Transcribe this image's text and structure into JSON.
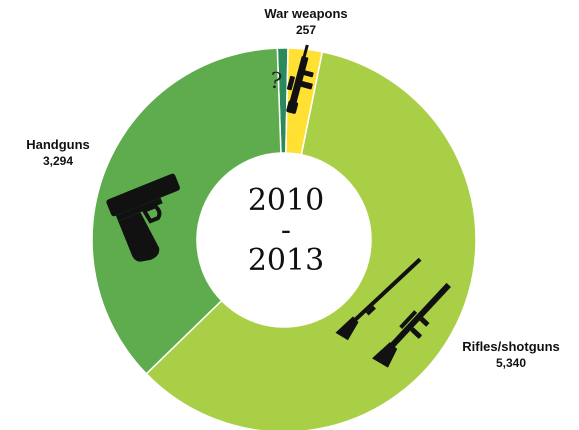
{
  "chart_data": {
    "type": "pie",
    "center_label": {
      "start": "2010",
      "sep": "-",
      "end": "2013"
    },
    "slices": [
      {
        "label": "",
        "value": 80,
        "color": "#2a8a5a",
        "icon": "question-mark-icon"
      },
      {
        "label": "War weapons",
        "value": 257,
        "value_text": "257",
        "color": "#ffe033",
        "icon": "machine-gun-icon"
      },
      {
        "label": "Rifles/shotguns",
        "value": 5340,
        "value_text": "5,340",
        "color": "#a8cf45",
        "icon": "rifle-icon"
      },
      {
        "label": "Handguns",
        "value": 3294,
        "value_text": "3,294",
        "color": "#5fac4f",
        "icon": "handgun-icon"
      }
    ]
  }
}
